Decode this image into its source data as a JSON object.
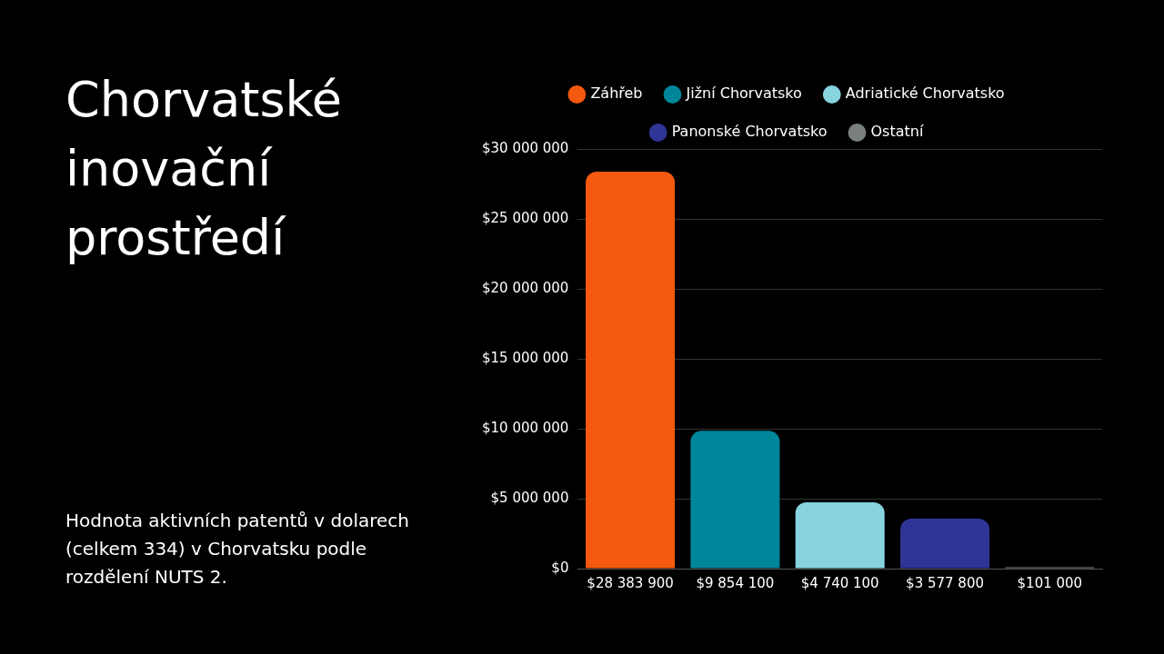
{
  "chart_data": {
    "type": "bar",
    "title": "Chorvatské inovační prostředí",
    "subtitle": "Hodnota aktivních patentů v dolarech (celkem 334) v Chorvatsku podle rozdělení NUTS 2.",
    "categories": [
      "$28 383 900",
      "$9 854 100",
      "$4 740 100",
      "$3 577 800",
      "$101 000"
    ],
    "series": [
      {
        "name": "Záhřeb",
        "color": "#f4590f",
        "values": [
          28383900,
          null,
          null,
          null,
          null
        ]
      },
      {
        "name": "Jižní Chorvatsko",
        "color": "#00869a",
        "values": [
          null,
          9854100,
          null,
          null,
          null
        ]
      },
      {
        "name": "Adriatické Chorvatsko",
        "color": "#87d3e0",
        "values": [
          null,
          null,
          4740100,
          null,
          null
        ]
      },
      {
        "name": "Panonské Chorvatsko",
        "color": "#2f3596",
        "values": [
          null,
          null,
          null,
          3577800,
          null
        ]
      },
      {
        "name": "Ostatní",
        "color": "#7a7f80",
        "values": [
          null,
          null,
          null,
          null,
          101000
        ]
      }
    ],
    "ylim": [
      0,
      30000000
    ],
    "yticks": [
      {
        "value": 0,
        "label": "$0"
      },
      {
        "value": 5000000,
        "label": "$5 000 000"
      },
      {
        "value": 10000000,
        "label": "$10 000 000"
      },
      {
        "value": 15000000,
        "label": "$15 000 000"
      },
      {
        "value": 20000000,
        "label": "$20 000 000"
      },
      {
        "value": 25000000,
        "label": "$25 000 000"
      },
      {
        "value": 30000000,
        "label": "$30 000 000"
      }
    ],
    "grid": "y",
    "legend": "top"
  }
}
